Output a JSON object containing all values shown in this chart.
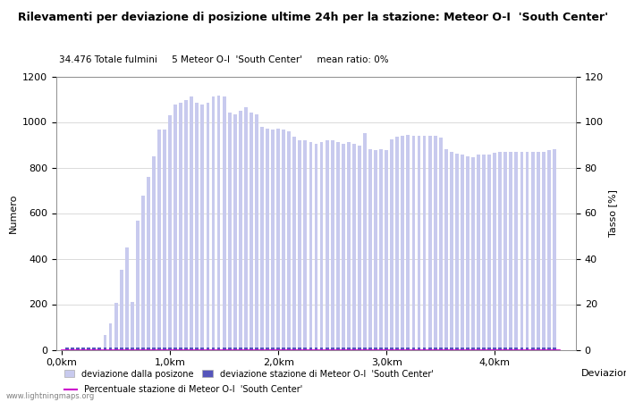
{
  "title": "Rilevamenti per deviazione di posizione ultime 24h per la stazione: Meteor O-I  'South Center'",
  "subtitle": "34.476 Totale fulmini     5 Meteor O-I  'South Center'     mean ratio: 0%",
  "ylabel_left": "Numero",
  "ylabel_right": "Tasso [%]",
  "xlabel": "Deviazioni",
  "watermark": "www.lightningmaps.org",
  "ylim_left": [
    0,
    1200
  ],
  "ylim_right": [
    0,
    120
  ],
  "xlim": [
    -0.05,
    4.75
  ],
  "bar_positions": [
    0.05,
    0.1,
    0.15,
    0.2,
    0.25,
    0.3,
    0.35,
    0.4,
    0.45,
    0.5,
    0.55,
    0.6,
    0.65,
    0.7,
    0.75,
    0.8,
    0.85,
    0.9,
    0.95,
    1.0,
    1.05,
    1.1,
    1.15,
    1.2,
    1.25,
    1.3,
    1.35,
    1.4,
    1.45,
    1.5,
    1.55,
    1.6,
    1.65,
    1.7,
    1.75,
    1.8,
    1.85,
    1.9,
    1.95,
    2.0,
    2.05,
    2.1,
    2.15,
    2.2,
    2.25,
    2.3,
    2.35,
    2.4,
    2.45,
    2.5,
    2.55,
    2.6,
    2.65,
    2.7,
    2.75,
    2.8,
    2.85,
    2.9,
    2.95,
    3.0,
    3.05,
    3.1,
    3.15,
    3.2,
    3.25,
    3.3,
    3.35,
    3.4,
    3.45,
    3.5,
    3.55,
    3.6,
    3.65,
    3.7,
    3.75,
    3.8,
    3.85,
    3.9,
    3.95,
    4.0,
    4.05,
    4.1,
    4.15,
    4.2,
    4.25,
    4.3,
    4.35,
    4.4,
    4.45,
    4.5,
    4.55
  ],
  "bar_heights": [
    5,
    5,
    5,
    5,
    5,
    10,
    10,
    65,
    115,
    205,
    350,
    450,
    210,
    565,
    675,
    760,
    850,
    965,
    965,
    1030,
    1075,
    1085,
    1095,
    1110,
    1085,
    1075,
    1085,
    1110,
    1115,
    1110,
    1040,
    1035,
    1050,
    1065,
    1040,
    1035,
    980,
    970,
    965,
    970,
    965,
    960,
    935,
    920,
    920,
    910,
    905,
    910,
    920,
    920,
    910,
    905,
    910,
    905,
    895,
    950,
    880,
    875,
    880,
    875,
    925,
    935,
    940,
    945,
    940,
    940,
    940,
    940,
    940,
    930,
    880,
    870,
    860,
    855,
    850,
    845,
    855,
    855,
    855,
    865,
    870,
    870,
    870,
    870,
    870,
    870,
    870,
    870,
    870,
    875,
    880
  ],
  "station_heights": [
    0,
    0,
    0,
    0,
    0,
    0,
    0,
    0,
    0,
    0,
    0,
    0,
    0,
    0,
    0,
    0,
    0,
    0,
    0,
    0,
    0,
    0,
    0,
    0,
    0,
    0,
    0,
    0,
    0,
    0,
    0,
    0,
    0,
    0,
    0,
    0,
    0,
    0,
    0,
    0,
    0,
    0,
    0,
    0,
    0,
    0,
    0,
    0,
    0,
    0,
    0,
    0,
    0,
    0,
    0,
    0,
    0,
    0,
    0,
    0,
    0,
    0,
    0,
    0,
    0,
    0,
    0,
    0,
    0,
    0,
    0,
    0,
    0,
    0,
    0,
    0,
    0,
    0,
    0,
    0,
    0,
    0,
    0,
    0,
    0,
    0,
    0,
    0,
    0,
    0,
    0
  ],
  "light_bar_color": "#c8caee",
  "dark_bar_color": "#5555bb",
  "line_color": "#cc00cc",
  "tick_positions": [
    0.0,
    1.0,
    2.0,
    3.0,
    4.0
  ],
  "tick_labels": [
    "0,0km",
    "1,0km",
    "2,0km",
    "3,0km",
    "4,0km"
  ],
  "ytick_positions": [
    0,
    200,
    400,
    600,
    800,
    1000,
    1200
  ],
  "right_ytick_positions": [
    0,
    20,
    40,
    60,
    80,
    100,
    120
  ],
  "grid_color": "#cccccc",
  "bg_color": "#ffffff",
  "legend_label1": "deviazione dalla posizone",
  "legend_label2": "deviazione stazione di Meteor O-I  'South Center'",
  "legend_label3": "Percentuale stazione di Meteor O-I  'South Center'",
  "title_fontsize": 9,
  "subtitle_fontsize": 7.5,
  "axis_fontsize": 8,
  "tick_fontsize": 8,
  "legend_fontsize": 7
}
